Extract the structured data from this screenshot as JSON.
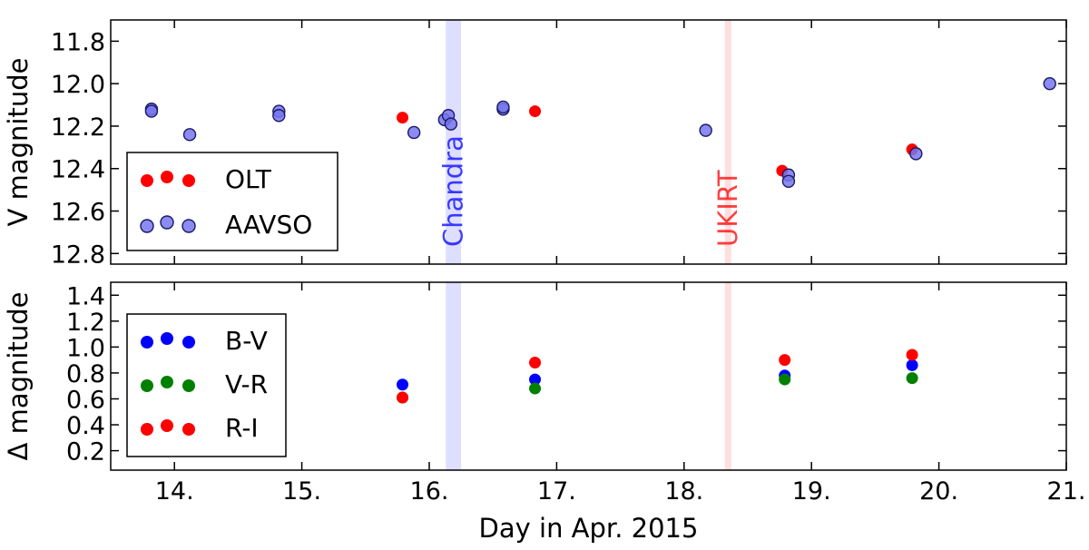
{
  "chart_data": [
    {
      "type": "scatter",
      "ylabel": "V magnitude",
      "ylim": [
        12.85,
        11.7
      ],
      "y_inverted": true,
      "xlim": [
        13.5,
        21.0
      ],
      "y_ticks": [
        "11.8",
        "12.0",
        "12.2",
        "12.4",
        "12.6",
        "12.8"
      ],
      "grid": false,
      "legend_position": "lower-left",
      "bands": [
        {
          "label": "Chandra",
          "x_start": 16.13,
          "x_end": 16.25,
          "color": "#0000ff"
        },
        {
          "label": "UKIRT",
          "x_start": 18.32,
          "x_end": 18.37,
          "color": "#ff0000"
        }
      ],
      "series": [
        {
          "name": "OLT",
          "color": "#ff0000",
          "x": [
            15.79,
            16.83,
            18.77,
            19.79
          ],
          "y": [
            12.16,
            12.13,
            12.41,
            12.31
          ]
        },
        {
          "name": "AAVSO",
          "color": "#7777ee",
          "x": [
            13.82,
            13.82,
            14.12,
            14.82,
            14.82,
            15.88,
            16.12,
            16.15,
            16.17,
            16.58,
            16.58,
            18.17,
            18.82,
            18.82,
            19.82,
            20.87
          ],
          "y": [
            12.12,
            12.13,
            12.24,
            12.13,
            12.15,
            12.23,
            12.17,
            12.15,
            12.19,
            12.12,
            12.11,
            12.22,
            12.43,
            12.46,
            12.33,
            12.0
          ]
        }
      ]
    },
    {
      "type": "scatter",
      "ylabel": "Δ magnitude",
      "xlabel": "Day in Apr. 2015",
      "ylim": [
        0.05,
        1.5
      ],
      "xlim": [
        13.5,
        21.0
      ],
      "y_ticks": [
        "0.2",
        "0.4",
        "0.6",
        "0.8",
        "1.0",
        "1.2",
        "1.4"
      ],
      "x_ticks": [
        "14.",
        "15.",
        "16.",
        "17.",
        "18.",
        "19.",
        "20.",
        "21."
      ],
      "grid": false,
      "legend_position": "upper-left",
      "series": [
        {
          "name": "B-V",
          "color": "#0000ff",
          "x": [
            15.79,
            16.83,
            18.79,
            19.79
          ],
          "y": [
            0.71,
            0.75,
            0.78,
            0.86
          ]
        },
        {
          "name": "V-R",
          "color": "#008000",
          "x": [
            15.79,
            16.83,
            18.79,
            19.79
          ],
          "y": [
            0.61,
            0.68,
            0.75,
            0.76
          ]
        },
        {
          "name": "R-I",
          "color": "#ff0000",
          "x": [
            15.79,
            16.83,
            18.79,
            19.79
          ],
          "y": [
            0.61,
            0.88,
            0.9,
            0.94
          ]
        }
      ]
    }
  ]
}
